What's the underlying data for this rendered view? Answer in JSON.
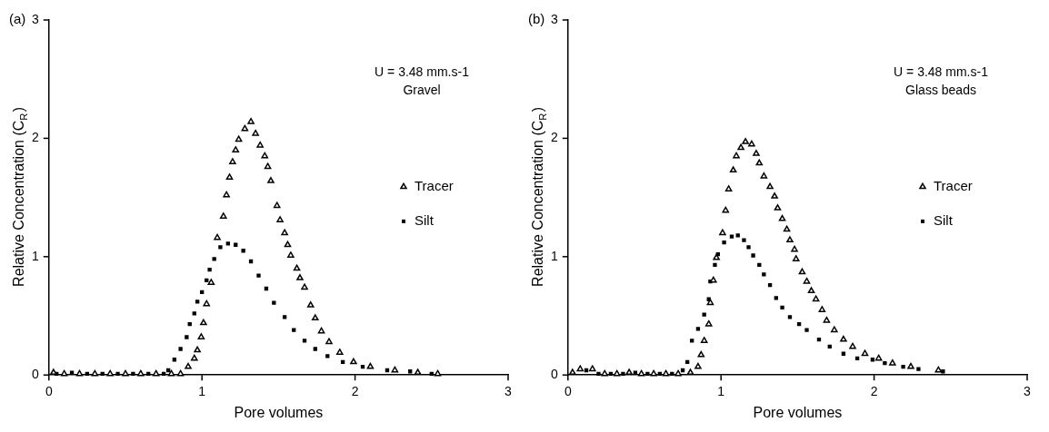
{
  "chart_data": [
    {
      "type": "scatter",
      "title": "(a)",
      "xlabel": "Pore volumes",
      "ylabel": "Relative Concentration (C$_{R}$)",
      "annotations": [
        "U = 3.48 mm.s-1",
        "Gravel"
      ],
      "xlim": [
        0,
        3
      ],
      "ylim": [
        0,
        3
      ],
      "xticks": [
        0,
        1,
        2,
        3
      ],
      "yticks": [
        0,
        1,
        2,
        3
      ],
      "grid": false,
      "legend": "right",
      "series": [
        {
          "name": "Tracer",
          "color": "#000000",
          "marker": "triangle",
          "x": [
            0.03,
            0.1,
            0.2,
            0.3,
            0.4,
            0.5,
            0.6,
            0.7,
            0.8,
            0.86,
            0.91,
            0.95,
            0.97,
            0.995,
            1.01,
            1.03,
            1.06,
            1.1,
            1.14,
            1.16,
            1.18,
            1.2,
            1.22,
            1.24,
            1.28,
            1.32,
            1.35,
            1.38,
            1.41,
            1.43,
            1.45,
            1.49,
            1.51,
            1.54,
            1.56,
            1.58,
            1.62,
            1.64,
            1.67,
            1.71,
            1.74,
            1.78,
            1.83,
            1.9,
            1.99,
            2.1,
            2.26,
            2.41,
            2.54
          ],
          "values": [
            0.02,
            0.01,
            0.01,
            0.01,
            0.01,
            0.01,
            0.01,
            0.01,
            0.01,
            0.01,
            0.07,
            0.14,
            0.21,
            0.32,
            0.44,
            0.6,
            0.78,
            1.16,
            1.34,
            1.52,
            1.67,
            1.8,
            1.9,
            1.99,
            2.08,
            2.14,
            2.04,
            1.94,
            1.85,
            1.76,
            1.64,
            1.43,
            1.31,
            1.2,
            1.1,
            1.01,
            0.9,
            0.82,
            0.74,
            0.59,
            0.48,
            0.37,
            0.28,
            0.19,
            0.11,
            0.07,
            0.04,
            0.02,
            0.01
          ]
        },
        {
          "name": "Silt",
          "color": "#000000",
          "marker": "square",
          "x": [
            0.05,
            0.15,
            0.25,
            0.35,
            0.45,
            0.55,
            0.65,
            0.75,
            0.78,
            0.82,
            0.86,
            0.9,
            0.92,
            0.95,
            0.97,
            1.0,
            1.03,
            1.05,
            1.08,
            1.12,
            1.17,
            1.22,
            1.27,
            1.32,
            1.37,
            1.42,
            1.47,
            1.54,
            1.6,
            1.67,
            1.74,
            1.82,
            1.92,
            2.05,
            2.21,
            2.36,
            2.5
          ],
          "values": [
            0.01,
            0.02,
            0.01,
            0.01,
            0.01,
            0.01,
            0.01,
            0.01,
            0.04,
            0.13,
            0.22,
            0.32,
            0.43,
            0.52,
            0.62,
            0.7,
            0.8,
            0.89,
            0.98,
            1.08,
            1.11,
            1.1,
            1.05,
            0.96,
            0.84,
            0.73,
            0.61,
            0.49,
            0.38,
            0.29,
            0.22,
            0.16,
            0.11,
            0.07,
            0.04,
            0.03,
            0.01
          ]
        }
      ]
    },
    {
      "type": "scatter",
      "title": "(b)",
      "xlabel": "Pore volumes",
      "ylabel": "Relative Concentration (C$_{R}$)",
      "annotations": [
        "U = 3.48 mm.s-1",
        "Glass beads"
      ],
      "xlim": [
        0,
        3
      ],
      "ylim": [
        0,
        3
      ],
      "xticks": [
        0,
        1,
        2,
        3
      ],
      "yticks": [
        0,
        1,
        2,
        3
      ],
      "grid": false,
      "legend": "right",
      "series": [
        {
          "name": "Tracer",
          "color": "#000000",
          "marker": "triangle",
          "x": [
            0.03,
            0.08,
            0.16,
            0.24,
            0.32,
            0.4,
            0.48,
            0.56,
            0.64,
            0.72,
            0.8,
            0.85,
            0.87,
            0.89,
            0.92,
            0.93,
            0.95,
            0.97,
            1.01,
            1.03,
            1.05,
            1.08,
            1.1,
            1.13,
            1.16,
            1.2,
            1.23,
            1.25,
            1.28,
            1.32,
            1.35,
            1.37,
            1.4,
            1.43,
            1.45,
            1.48,
            1.49,
            1.53,
            1.56,
            1.59,
            1.62,
            1.66,
            1.69,
            1.74,
            1.8,
            1.86,
            1.94,
            2.03,
            2.12,
            2.24,
            2.42
          ],
          "values": [
            0.02,
            0.05,
            0.05,
            0.01,
            0.01,
            0.02,
            0.01,
            0.01,
            0.01,
            0.01,
            0.02,
            0.07,
            0.17,
            0.29,
            0.43,
            0.61,
            0.8,
            0.99,
            1.2,
            1.39,
            1.57,
            1.73,
            1.85,
            1.92,
            1.97,
            1.95,
            1.87,
            1.79,
            1.68,
            1.59,
            1.51,
            1.41,
            1.32,
            1.23,
            1.14,
            1.06,
            0.98,
            0.87,
            0.79,
            0.71,
            0.64,
            0.55,
            0.46,
            0.38,
            0.3,
            0.24,
            0.18,
            0.14,
            0.1,
            0.07,
            0.04
          ]
        },
        {
          "name": "Silt",
          "color": "#000000",
          "marker": "square",
          "x": [
            0.12,
            0.2,
            0.28,
            0.36,
            0.44,
            0.52,
            0.6,
            0.68,
            0.75,
            0.78,
            0.81,
            0.85,
            0.89,
            0.92,
            0.93,
            0.96,
            0.98,
            1.02,
            1.07,
            1.11,
            1.15,
            1.18,
            1.21,
            1.25,
            1.28,
            1.32,
            1.36,
            1.4,
            1.45,
            1.51,
            1.56,
            1.64,
            1.71,
            1.8,
            1.89,
            1.99,
            2.07,
            2.19,
            2.29,
            2.45
          ],
          "values": [
            0.04,
            0.01,
            0.01,
            0.01,
            0.02,
            0.01,
            0.01,
            0.01,
            0.04,
            0.11,
            0.29,
            0.39,
            0.51,
            0.64,
            0.79,
            0.93,
            1.02,
            1.12,
            1.17,
            1.18,
            1.14,
            1.08,
            1.01,
            0.93,
            0.85,
            0.76,
            0.65,
            0.57,
            0.49,
            0.43,
            0.38,
            0.3,
            0.24,
            0.18,
            0.14,
            0.13,
            0.1,
            0.07,
            0.05,
            0.03
          ]
        }
      ]
    }
  ]
}
